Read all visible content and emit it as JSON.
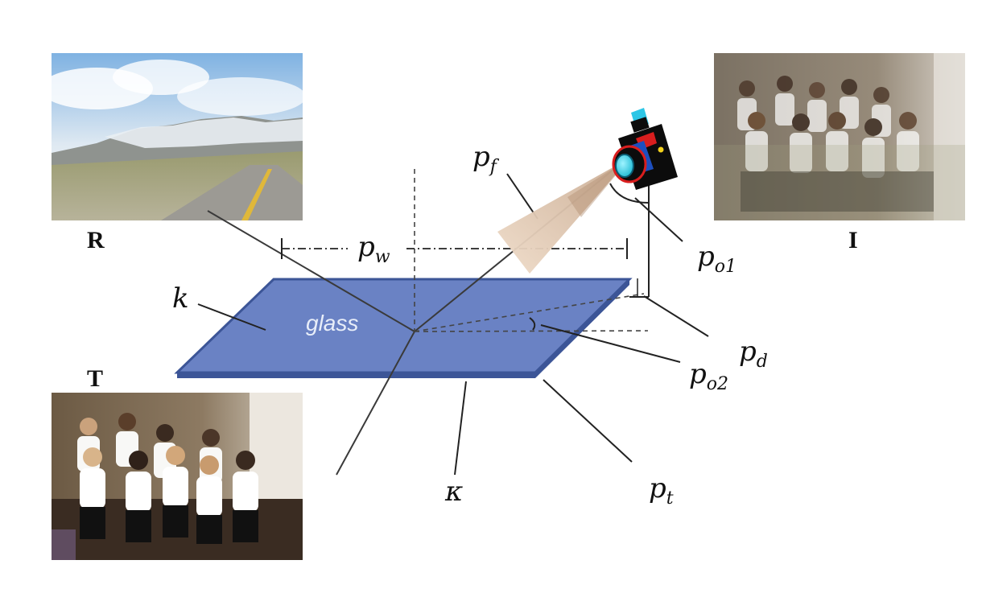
{
  "images": {
    "reflection": {
      "label": "R"
    },
    "input": {
      "label": "I"
    },
    "transmission": {
      "label": "T"
    }
  },
  "glass_label": "glass",
  "params": {
    "k": {
      "main": "k",
      "sub": ""
    },
    "kappa": {
      "main": "κ",
      "sub": ""
    },
    "p_w": {
      "main": "p",
      "sub": "w"
    },
    "p_f": {
      "main": "p",
      "sub": "f"
    },
    "p_o1": {
      "main": "p",
      "sub": "o1"
    },
    "p_d": {
      "main": "p",
      "sub": "d"
    },
    "p_o2": {
      "main": "p",
      "sub": "o2"
    },
    "p_t": {
      "main": "p",
      "sub": "t"
    }
  },
  "colors": {
    "glass_fill": "#6a82c4",
    "glass_edge": "#3c5597",
    "cone": "#e9d5c2",
    "camera_body": "#0c0c0c",
    "lens": "#2ed2ea"
  }
}
